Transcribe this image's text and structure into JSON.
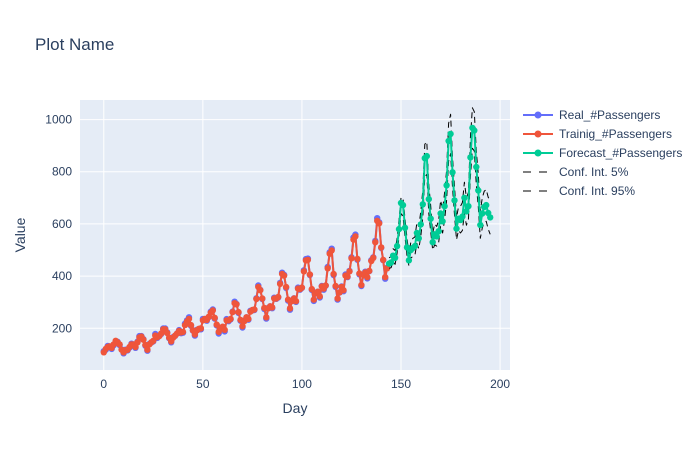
{
  "chart_data": {
    "type": "line",
    "title": "Plot Name",
    "xlabel": "Day",
    "ylabel": "Value",
    "xlim": [
      -12,
      205
    ],
    "ylim": [
      40,
      1075
    ],
    "x_ticks": [
      0,
      50,
      100,
      150,
      200
    ],
    "y_ticks": [
      200,
      400,
      600,
      800,
      1000
    ],
    "grid": true,
    "legend_position": "right",
    "colors": {
      "plot_bg": "#e5ecf6",
      "grid": "#ffffff",
      "real": "#636efa",
      "training": "#ef553b",
      "forecast": "#00cc96",
      "conf": "#000000"
    },
    "series": [
      {
        "name": "Real_#Passengers",
        "color": "#636efa",
        "mode": "lines+markers",
        "x_start": 0,
        "values": [
          112,
          118,
          132,
          129,
          121,
          135,
          148,
          148,
          136,
          119,
          104,
          118,
          115,
          126,
          141,
          135,
          125,
          149,
          170,
          170,
          158,
          133,
          114,
          140,
          145,
          150,
          178,
          163,
          172,
          178,
          199,
          199,
          184,
          162,
          146,
          166,
          171,
          180,
          193,
          181,
          183,
          218,
          230,
          242,
          209,
          191,
          172,
          194,
          196,
          196,
          236,
          235,
          229,
          243,
          264,
          272,
          237,
          211,
          180,
          201,
          204,
          188,
          235,
          227,
          234,
          264,
          302,
          293,
          259,
          229,
          203,
          229,
          242,
          233,
          267,
          269,
          270,
          315,
          364,
          347,
          312,
          274,
          237,
          278,
          284,
          277,
          317,
          313,
          318,
          374,
          413,
          405,
          355,
          306,
          271,
          306,
          315,
          301,
          356,
          348,
          355,
          422,
          465,
          467,
          404,
          347,
          305,
          336,
          340,
          318,
          362,
          348,
          363,
          435,
          491,
          505,
          404,
          359,
          310,
          337,
          360,
          342,
          406,
          396,
          420,
          472,
          548,
          559,
          463,
          407,
          362,
          405,
          417,
          391,
          419,
          461,
          472,
          535,
          622,
          606,
          508,
          461,
          390,
          432
        ]
      },
      {
        "name": "Trainig_#Passengers",
        "color": "#ef553b",
        "mode": "lines+markers",
        "x_start": 0,
        "values": [
          108,
          121,
          128,
          131,
          125,
          138,
          152,
          146,
          138,
          118,
          108,
          116,
          118,
          128,
          138,
          138,
          128,
          146,
          165,
          168,
          156,
          136,
          118,
          138,
          146,
          152,
          172,
          166,
          170,
          180,
          196,
          196,
          182,
          164,
          150,
          164,
          172,
          180,
          190,
          184,
          186,
          212,
          226,
          236,
          212,
          192,
          176,
          192,
          198,
          200,
          230,
          236,
          232,
          244,
          260,
          268,
          240,
          214,
          186,
          200,
          206,
          194,
          230,
          230,
          236,
          262,
          296,
          292,
          262,
          232,
          208,
          228,
          242,
          236,
          264,
          270,
          272,
          312,
          358,
          346,
          314,
          278,
          242,
          276,
          284,
          280,
          314,
          314,
          320,
          370,
          408,
          402,
          358,
          310,
          276,
          304,
          314,
          304,
          352,
          350,
          356,
          418,
          460,
          462,
          406,
          350,
          310,
          334,
          340,
          322,
          360,
          352,
          364,
          430,
          486,
          498,
          408,
          362,
          314,
          338,
          358,
          346,
          402,
          398,
          418,
          468,
          540,
          552,
          466,
          410,
          366,
          404,
          414,
          396,
          420,
          458,
          470,
          530,
          612,
          602,
          510,
          462,
          396,
          430
        ]
      },
      {
        "name": "Forecast_#Passengers",
        "color": "#00cc96",
        "mode": "lines+markers",
        "x_start": 144,
        "values": [
          448,
          452,
          478,
          470,
          515,
          580,
          680,
          672,
          585,
          510,
          460,
          500,
          508,
          515,
          565,
          545,
          598,
          675,
          852,
          860,
          695,
          620,
          530,
          560,
          552,
          572,
          640,
          610,
          668,
          748,
          918,
          945,
          798,
          690,
          582,
          620,
          615,
          628,
          700,
          648,
          668,
          855,
          968,
          958,
          818,
          728,
          596,
          640,
          665,
          672,
          642,
          625
        ]
      },
      {
        "name": "Conf. Int. 5%",
        "color": "#000000",
        "mode": "lines",
        "dash": "dash",
        "x_start": 144,
        "values": [
          430,
          432,
          455,
          445,
          488,
          550,
          640,
          630,
          550,
          478,
          440,
          470,
          475,
          480,
          525,
          505,
          552,
          625,
          780,
          790,
          640,
          570,
          500,
          520,
          515,
          530,
          590,
          565,
          615,
          690,
          840,
          870,
          740,
          635,
          540,
          575,
          565,
          575,
          640,
          595,
          615,
          780,
          890,
          880,
          750,
          665,
          545,
          585,
          605,
          610,
          580,
          560
        ]
      },
      {
        "name": "Conf. Int. 95%",
        "color": "#000000",
        "mode": "lines",
        "dash": "dash",
        "x_start": 144,
        "values": [
          470,
          475,
          505,
          498,
          545,
          615,
          700,
          700,
          620,
          545,
          485,
          532,
          545,
          550,
          605,
          590,
          648,
          728,
          905,
          915,
          750,
          670,
          565,
          600,
          590,
          615,
          690,
          655,
          720,
          805,
          985,
          1020,
          855,
          745,
          625,
          665,
          668,
          682,
          760,
          700,
          720,
          930,
          1045,
          1030,
          880,
          790,
          650,
          700,
          725,
          732,
          702,
          690
        ]
      }
    ]
  }
}
